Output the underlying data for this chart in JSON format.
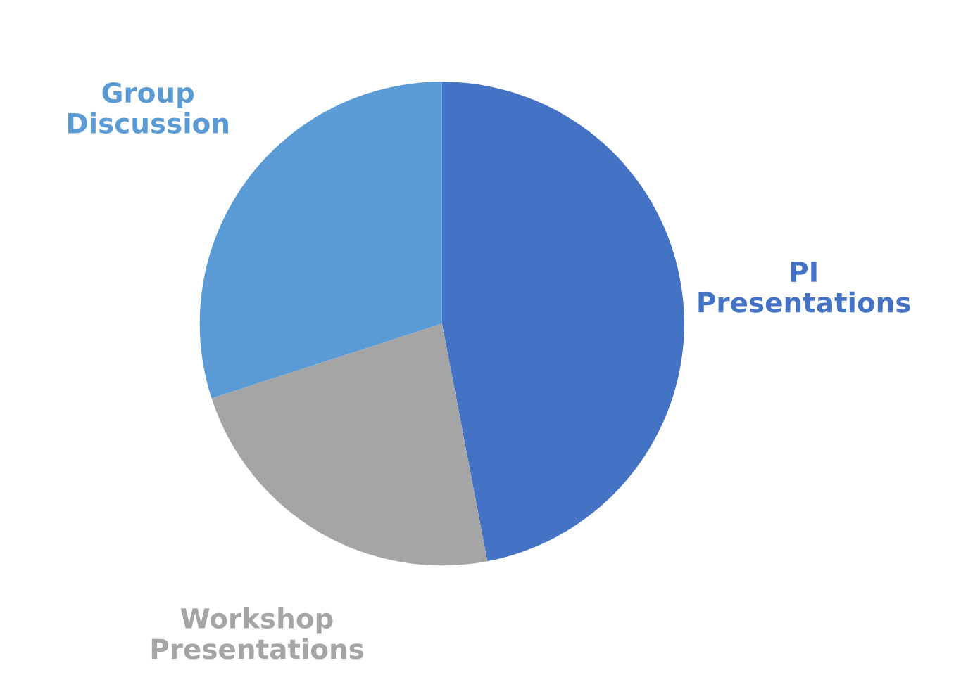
{
  "chart_data": {
    "type": "pie",
    "categories": [
      "PI Presentations",
      "Workshop Presentations",
      "Group Discussion"
    ],
    "values": [
      47,
      23,
      30
    ],
    "colors": [
      "#4472c4",
      "#a5a5a5",
      "#5b9bd5"
    ],
    "legend": false
  }
}
